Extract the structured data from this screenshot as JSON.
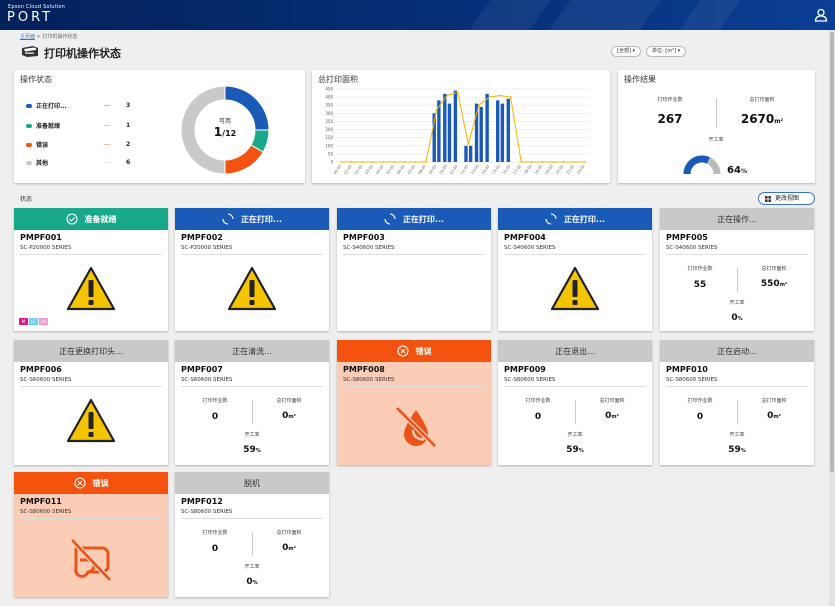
{
  "header": {
    "brand_small": "Epson Cloud Solution",
    "brand_big": "PORT"
  },
  "breadcrumb": {
    "home": "主页面",
    "separator": ">",
    "current": "打印机操作状态"
  },
  "page": {
    "title": "打印机操作状态",
    "filter_all": "[全部] ▾",
    "filter_unit": "单位: [m²] ▾"
  },
  "status_card": {
    "title": "操作状态",
    "legend": [
      {
        "name": "正在打印...",
        "dash": "---",
        "count": "3",
        "color": "#1a5bb8"
      },
      {
        "name": "准备就绪",
        "dash": "---",
        "count": "1",
        "color": "#19a98a"
      },
      {
        "name": "错误",
        "dash": "---",
        "count": "2",
        "color": "#f3530e"
      },
      {
        "name": "其他",
        "dash": "---",
        "count": "6",
        "color": "#c9c9c9"
      }
    ],
    "donut_label": "可用",
    "donut_value": "1",
    "donut_total": "/12"
  },
  "area_card": {
    "title": "总打印面积"
  },
  "chart_data": {
    "type": "bar",
    "title": "总打印面积",
    "categories": [
      "00:00",
      "01:00",
      "02:00",
      "03:00",
      "04:00",
      "05:00",
      "06:00",
      "07:00",
      "08:00",
      "09:00",
      "10:00",
      "11:00",
      "12:00",
      "13:00",
      "14:00",
      "15:00",
      "16:00",
      "17:00",
      "18:00",
      "19:00",
      "20:00",
      "21:00",
      "22:00",
      "23:00"
    ],
    "yticks": [
      "0",
      "50",
      "100",
      "150",
      "200",
      "250",
      "300",
      "350",
      "400",
      "450"
    ],
    "ylim": [
      0,
      450
    ],
    "series": [
      {
        "type": "bar",
        "values": [
          0,
          0,
          0,
          0,
          0,
          0,
          0,
          0,
          0,
          300,
          420,
          440,
          100,
          360,
          420,
          380,
          390,
          0,
          0,
          0,
          0,
          0,
          0,
          0
        ],
        "color": "#1a5bb8"
      },
      {
        "type": "line",
        "values": [
          0,
          0,
          0,
          0,
          0,
          0,
          0,
          0,
          0,
          320,
          410,
          430,
          110,
          350,
          400,
          410,
          400,
          0,
          0,
          0,
          0,
          0,
          0,
          0
        ],
        "color": "#f0b400"
      }
    ],
    "extra_bars": [
      {
        "after_category": 9,
        "value": 380
      },
      {
        "after_category": 10,
        "value": 360
      },
      {
        "after_category": 12,
        "value": 100
      },
      {
        "after_category": 13,
        "value": 340
      },
      {
        "after_category": 15,
        "value": 360
      }
    ],
    "grid": true,
    "legend": "none"
  },
  "result_card": {
    "title": "操作结果",
    "jobs_label": "打印作业数",
    "jobs_value": "267",
    "area_label": "总打印面积",
    "area_value": "2670",
    "area_unit": "m²",
    "util_label": "开工率",
    "util_value": "64",
    "util_unit": "%",
    "util_fraction": 0.64
  },
  "section": {
    "label": "状态",
    "change_view": "更改视图"
  },
  "printers": [
    {
      "id": "PMPF001",
      "model": "SC-P20000 SERIES",
      "status": "准备就绪",
      "head": "green",
      "icon": "check-circle-icon",
      "body": "warning",
      "inks": [
        "M",
        "LC",
        "LM"
      ]
    },
    {
      "id": "PMPF002",
      "model": "SC-P20000 SERIES",
      "status": "正在打印...",
      "head": "blue",
      "icon": "spinner-icon",
      "body": "warning"
    },
    {
      "id": "PMPF003",
      "model": "SC-S40600 SERIES",
      "status": "正在打印...",
      "head": "blue",
      "icon": "spinner-icon",
      "body": "none"
    },
    {
      "id": "PMPF004",
      "model": "SC-S40600 SERIES",
      "status": "正在打印...",
      "head": "blue",
      "icon": "spinner-icon",
      "body": "warning"
    },
    {
      "id": "PMPF005",
      "model": "SC-S40600 SERIES",
      "status": "正在操作...",
      "head": "gray",
      "body": "stats",
      "jobs": "55",
      "area": "550",
      "area_unit": "m²",
      "util": "0",
      "util_unit": "%"
    },
    {
      "id": "PMPF006",
      "model": "SC-S60600 SERIES",
      "status": "正在更换打印头...",
      "head": "gray",
      "body": "warning"
    },
    {
      "id": "PMPF007",
      "model": "SC-S60600 SERIES",
      "status": "正在清洗...",
      "head": "gray",
      "body": "stats",
      "jobs": "0",
      "area": "0",
      "area_unit": "m²",
      "util": "59",
      "util_unit": "%"
    },
    {
      "id": "PMPF008",
      "model": "SC-S80600 SERIES",
      "status": "错误",
      "head": "orange",
      "icon": "x-circle-icon",
      "body": "no-ink",
      "error": true
    },
    {
      "id": "PMPF009",
      "model": "SC-S80600 SERIES",
      "status": "正在退出...",
      "head": "gray",
      "body": "stats",
      "jobs": "0",
      "area": "0",
      "area_unit": "m²",
      "util": "59",
      "util_unit": "%"
    },
    {
      "id": "PMPF010",
      "model": "SC-S80600 SERIES",
      "status": "正在启动...",
      "head": "gray",
      "body": "stats",
      "jobs": "0",
      "area": "0",
      "area_unit": "m²",
      "util": "59",
      "util_unit": "%"
    },
    {
      "id": "PMPF011",
      "model": "SC-S80600 SERIES",
      "status": "错误",
      "head": "orange",
      "icon": "x-circle-icon",
      "body": "no-paper",
      "error": true
    },
    {
      "id": "PMPF012",
      "model": "SC-S80600 SERIES",
      "status": "脱机",
      "head": "gray",
      "body": "stats",
      "jobs": "0",
      "area": "0",
      "area_unit": "m²",
      "util": "0",
      "util_unit": "%"
    }
  ],
  "mini_labels": {
    "jobs": "打印作业数",
    "area": "总打印面积",
    "util": "开工率"
  }
}
